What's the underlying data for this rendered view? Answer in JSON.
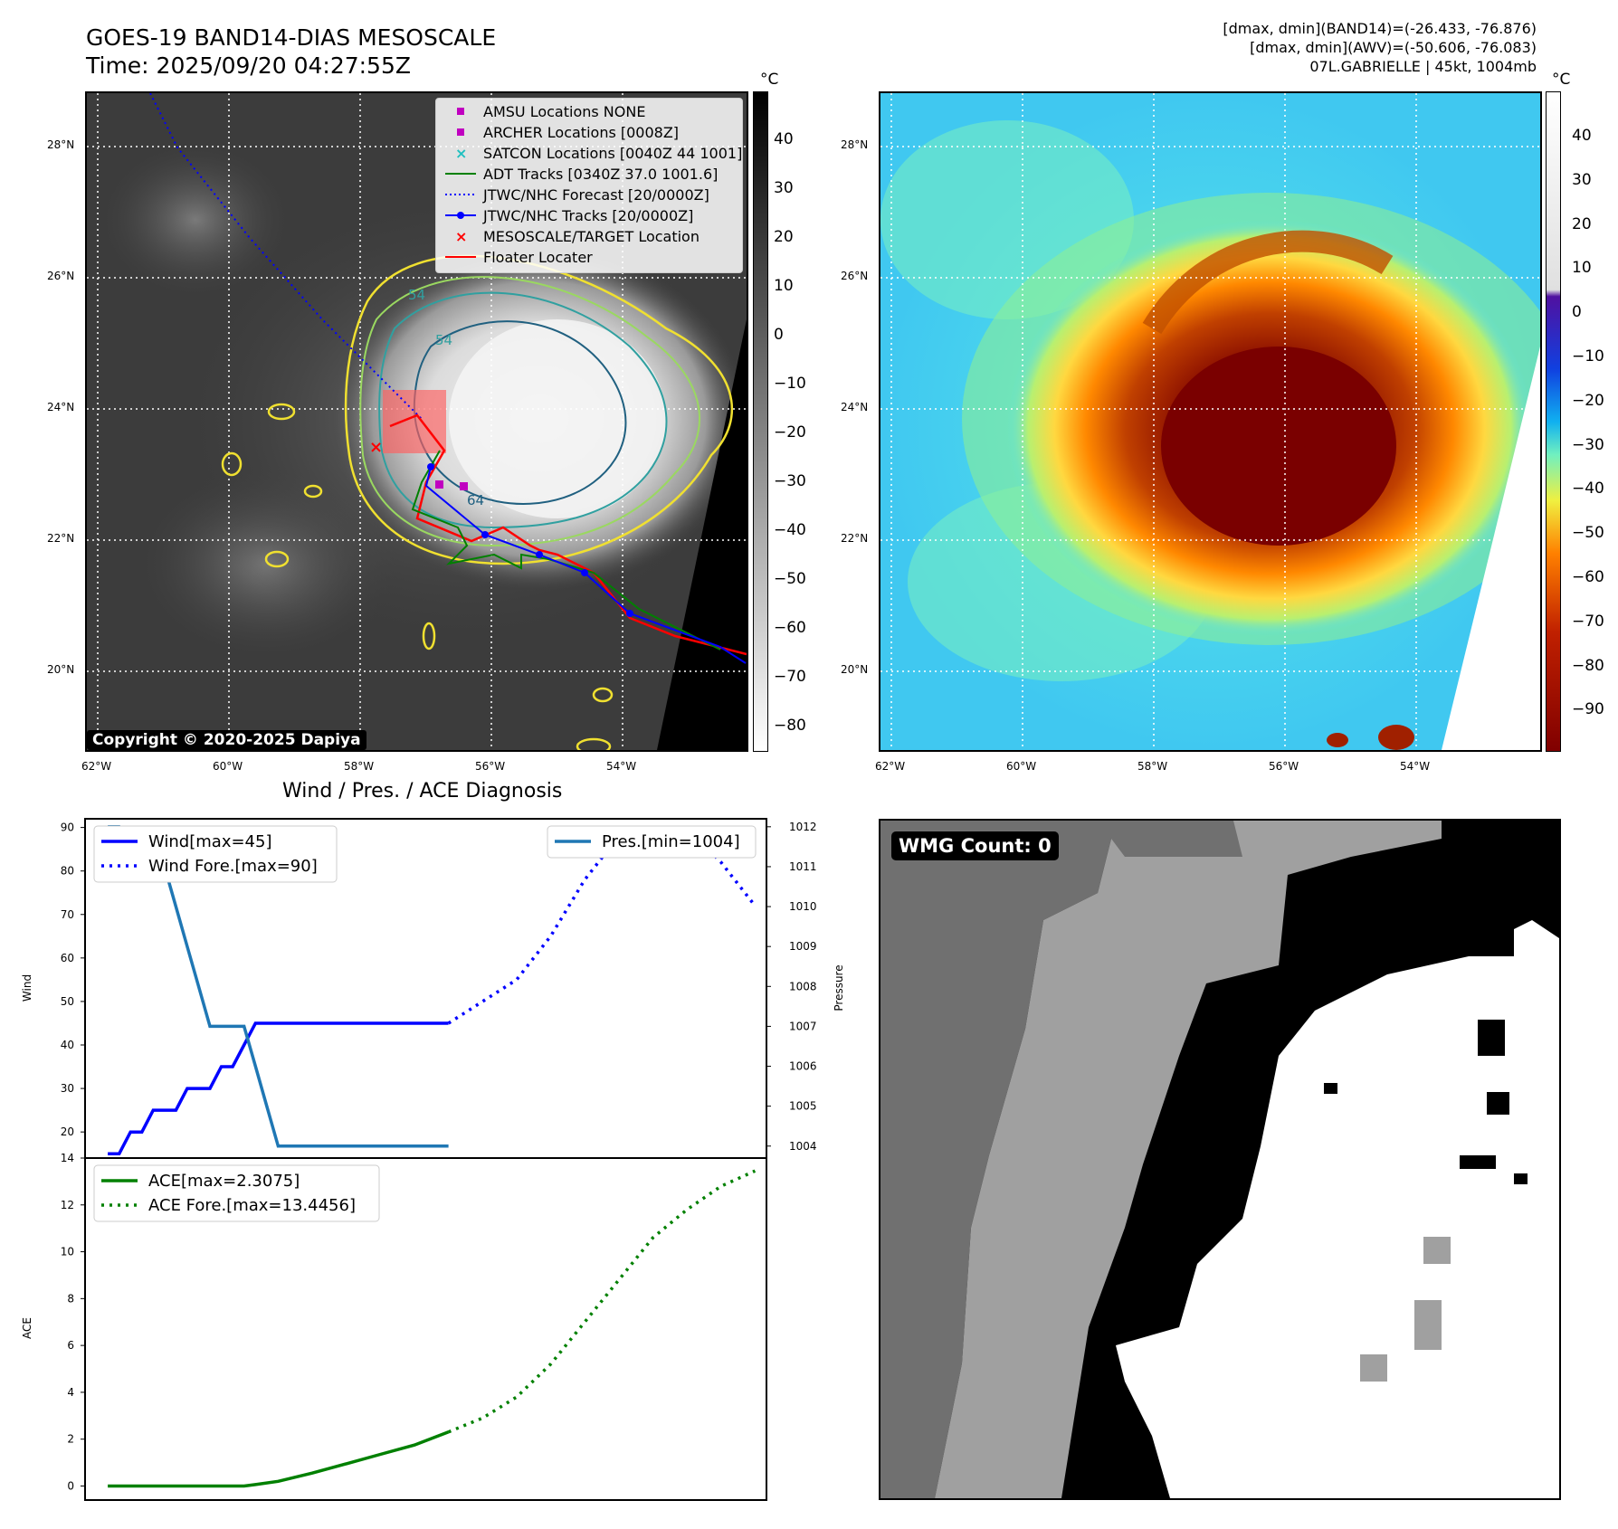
{
  "header": {
    "title_line1": "GOES-19 BAND14-DIAS MESOSCALE",
    "title_line2": "Time: 2025/09/20 04:27:55Z",
    "info_line1": "[dmax, dmin](BAND14)=(-26.433, -76.876)",
    "info_line2": "[dmax, dmin](AWV)=(-50.606, -76.083)",
    "info_line3": "07L.GABRIELLE | 45kt, 1004mb"
  },
  "map": {
    "lat_labels": [
      "28°N",
      "26°N",
      "24°N",
      "22°N",
      "20°N"
    ],
    "lon_labels": [
      "62°W",
      "60°W",
      "58°W",
      "56°W",
      "54°W"
    ],
    "copyright": "Copyright © 2020-2025 Dapiya",
    "contour_labels": [
      "54",
      "54",
      "64"
    ],
    "legend": [
      {
        "label": "AMSU Locations NONE",
        "color": "#c000c0",
        "marker": "square"
      },
      {
        "label": "ARCHER Locations [0008Z]",
        "color": "#c000c0",
        "marker": "square"
      },
      {
        "label": "SATCON Locations [0040Z 44 1001]",
        "color": "#20c0c0",
        "marker": "x"
      },
      {
        "label": "ADT Tracks [0340Z 37.0 1001.6]",
        "color": "#008000",
        "marker": "line"
      },
      {
        "label": "JTWC/NHC Forecast [20/0000Z]",
        "color": "#0000ff",
        "marker": "dotted"
      },
      {
        "label": "JTWC/NHC Tracks [20/0000Z]",
        "color": "#0000ff",
        "marker": "dotline"
      },
      {
        "label": "MESOSCALE/TARGET Location",
        "color": "#ff0000",
        "marker": "x"
      },
      {
        "label": "Floater Locater",
        "color": "#ff0000",
        "marker": "line"
      }
    ]
  },
  "colorbar_gray": {
    "unit": "°C",
    "ticks": [
      "40",
      "30",
      "20",
      "10",
      "0",
      "−10",
      "−20",
      "−30",
      "−40",
      "−50",
      "−60",
      "−70",
      "−80"
    ]
  },
  "colorbar_color": {
    "unit": "°C",
    "ticks": [
      "40",
      "30",
      "20",
      "10",
      "0",
      "−10",
      "−20",
      "−30",
      "−40",
      "−50",
      "−60",
      "−70",
      "−80",
      "−90"
    ]
  },
  "wmg": {
    "label": "WMG Count: 0"
  },
  "chart_data": [
    {
      "type": "line",
      "title": "Wind / Pres. / ACE Diagnosis",
      "ylabel": "Wind",
      "ylabel_right": "Pressure",
      "ylim": [
        14,
        92
      ],
      "ylim_right": [
        1003.7,
        1012.2
      ],
      "yticks": [
        20,
        30,
        40,
        50,
        60,
        70,
        80,
        90
      ],
      "yticks_right": [
        1004,
        1005,
        1006,
        1007,
        1008,
        1009,
        1010,
        1011,
        1012
      ],
      "xlim": [
        -2,
        58
      ],
      "series": [
        {
          "name": "Wind[max=45]",
          "color": "#0000ff",
          "style": "solid",
          "x": [
            0,
            1,
            2,
            3,
            4,
            5,
            6,
            7,
            8,
            9,
            10,
            11,
            12,
            13,
            14,
            15,
            16,
            17,
            18,
            19,
            20,
            21,
            22,
            23,
            24,
            25,
            26,
            27,
            28,
            29,
            30
          ],
          "values": [
            15,
            15,
            20,
            20,
            25,
            25,
            25,
            30,
            30,
            30,
            35,
            35,
            40,
            45,
            45,
            45,
            45,
            45,
            45,
            45,
            45,
            45,
            45,
            45,
            45,
            45,
            45,
            45,
            45,
            45,
            45
          ]
        },
        {
          "name": "Wind Fore.[max=90]",
          "color": "#0000ff",
          "style": "dotted",
          "x": [
            30,
            33,
            36,
            39,
            42,
            45,
            48,
            51,
            54,
            57
          ],
          "values": [
            45,
            50,
            55,
            65,
            78,
            88,
            90,
            90,
            82,
            72
          ]
        },
        {
          "name": "Pres.[min=1004]",
          "color": "#1f77b4",
          "style": "solid",
          "axis": "right",
          "x": [
            0,
            1,
            2,
            3,
            4,
            5,
            6,
            7,
            8,
            9,
            10,
            11,
            12,
            13,
            14,
            15,
            16,
            17,
            18,
            19,
            20,
            21,
            22,
            23,
            24,
            25,
            26,
            27,
            28,
            29,
            30
          ],
          "values": [
            1012,
            1012,
            1011.6,
            1011.6,
            1011,
            1011,
            1010,
            1009,
            1008,
            1007,
            1007,
            1007,
            1007,
            1006,
            1005,
            1004,
            1004,
            1004,
            1004,
            1004,
            1004,
            1004,
            1004,
            1004,
            1004,
            1004,
            1004,
            1004,
            1004,
            1004,
            1004
          ]
        }
      ]
    },
    {
      "type": "line",
      "ylabel": "ACE",
      "ylim": [
        -0.6,
        14
      ],
      "yticks": [
        0,
        2,
        4,
        6,
        8,
        10,
        12,
        14
      ],
      "xlim": [
        -2,
        58
      ],
      "series": [
        {
          "name": "ACE[max=2.3075]",
          "color": "#008000",
          "style": "solid",
          "x": [
            0,
            3,
            6,
            9,
            12,
            13,
            15,
            18,
            21,
            24,
            27,
            30
          ],
          "values": [
            0,
            0,
            0,
            0,
            0,
            0.06,
            0.2,
            0.55,
            0.95,
            1.35,
            1.75,
            2.31
          ]
        },
        {
          "name": "ACE Fore.[max=13.4456]",
          "color": "#008000",
          "style": "dotted",
          "x": [
            30,
            33,
            36,
            39,
            42,
            45,
            48,
            51,
            54,
            57
          ],
          "values": [
            2.31,
            2.9,
            3.8,
            5.2,
            7.0,
            8.8,
            10.6,
            11.8,
            12.8,
            13.45
          ]
        }
      ]
    }
  ]
}
